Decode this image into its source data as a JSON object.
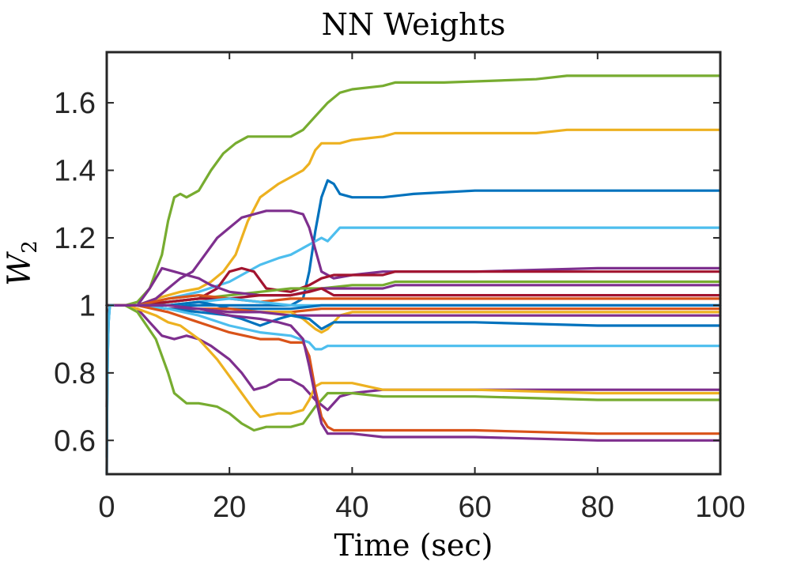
{
  "chart_data": {
    "type": "line",
    "title": "NN Weights",
    "xlabel": "Time (sec)",
    "ylabel": {
      "base": "W",
      "subscript": "2"
    },
    "xlim": [
      0,
      100
    ],
    "ylim": [
      0.5,
      1.75
    ],
    "xticks": [
      0,
      20,
      40,
      60,
      80,
      100
    ],
    "xtick_labels": [
      "0",
      "20",
      "40",
      "60",
      "80",
      "100"
    ],
    "yticks": [
      0.6,
      0.8,
      1.0,
      1.2,
      1.4,
      1.6
    ],
    "ytick_labels": [
      "0.6",
      "0.8",
      "1",
      "1.2",
      "1.4",
      "1.6"
    ],
    "grid": false,
    "legend": "none",
    "series": [
      {
        "color": "#77AC30",
        "x": [
          0,
          0.3,
          1,
          3,
          5,
          7,
          9,
          10,
          11,
          12,
          13,
          15,
          17,
          19,
          21,
          23,
          25,
          30,
          32,
          34,
          36,
          38,
          40,
          45,
          47,
          55,
          70,
          75,
          80,
          100
        ],
        "y": [
          1,
          1,
          1,
          1,
          1.01,
          1.05,
          1.15,
          1.25,
          1.32,
          1.33,
          1.32,
          1.34,
          1.4,
          1.45,
          1.48,
          1.5,
          1.5,
          1.5,
          1.52,
          1.56,
          1.6,
          1.63,
          1.64,
          1.65,
          1.66,
          1.66,
          1.67,
          1.68,
          1.68,
          1.68
        ]
      },
      {
        "color": "#EDB120",
        "x": [
          0,
          0.3,
          1,
          3,
          5,
          8,
          12,
          15,
          17,
          19,
          21,
          23,
          25,
          28,
          30,
          32,
          33,
          34,
          35,
          36,
          38,
          40,
          45,
          47,
          55,
          70,
          75,
          80,
          100
        ],
        "y": [
          1,
          1,
          1,
          1,
          1,
          1.02,
          1.04,
          1.05,
          1.07,
          1.1,
          1.15,
          1.25,
          1.32,
          1.36,
          1.38,
          1.4,
          1.42,
          1.46,
          1.48,
          1.48,
          1.48,
          1.49,
          1.5,
          1.51,
          1.51,
          1.51,
          1.52,
          1.52,
          1.52
        ]
      },
      {
        "color": "#0072BD",
        "x": [
          0,
          0.3,
          1,
          3,
          5,
          10,
          15,
          20,
          25,
          30,
          32,
          33,
          34,
          35,
          36,
          37,
          38,
          40,
          45,
          50,
          60,
          70,
          80,
          100
        ],
        "y": [
          1,
          1,
          1,
          1,
          1,
          1,
          1,
          1,
          1,
          1.0,
          1.02,
          1.1,
          1.22,
          1.32,
          1.37,
          1.36,
          1.33,
          1.32,
          1.32,
          1.33,
          1.34,
          1.34,
          1.34,
          1.34
        ]
      },
      {
        "color": "#4DBEEE",
        "x": [
          0,
          0.3,
          1,
          3,
          5,
          10,
          15,
          20,
          25,
          28,
          30,
          32,
          33,
          35,
          36,
          37,
          38,
          40,
          45,
          60,
          80,
          100
        ],
        "y": [
          1,
          1,
          1,
          1,
          1,
          1.02,
          1.04,
          1.07,
          1.12,
          1.14,
          1.15,
          1.17,
          1.18,
          1.2,
          1.19,
          1.21,
          1.23,
          1.23,
          1.23,
          1.23,
          1.23,
          1.23
        ]
      },
      {
        "color": "#7E2F8E",
        "x": [
          0,
          0.3,
          1,
          3,
          5,
          8,
          10,
          12,
          14,
          16,
          18,
          20,
          22,
          24,
          26,
          28,
          30,
          32,
          33,
          35,
          37,
          40,
          45,
          60,
          80,
          100
        ],
        "y": [
          1,
          1,
          1,
          1,
          1,
          1.02,
          1.05,
          1.08,
          1.1,
          1.15,
          1.2,
          1.23,
          1.26,
          1.27,
          1.28,
          1.28,
          1.28,
          1.27,
          1.23,
          1.1,
          1.08,
          1.09,
          1.1,
          1.1,
          1.11,
          1.11
        ]
      },
      {
        "color": "#A2142F",
        "x": [
          0,
          0.3,
          1,
          3,
          5,
          10,
          15,
          18,
          20,
          22,
          24,
          26,
          30,
          33,
          35,
          37,
          40,
          45,
          47,
          60,
          80,
          100
        ],
        "y": [
          1,
          1,
          1,
          1,
          1,
          1.01,
          1.02,
          1.05,
          1.1,
          1.11,
          1.1,
          1.05,
          1.04,
          1.06,
          1.08,
          1.09,
          1.09,
          1.09,
          1.1,
          1.1,
          1.1,
          1.1
        ]
      },
      {
        "color": "#77AC30",
        "x": [
          0,
          0.3,
          1,
          3,
          5,
          10,
          15,
          20,
          25,
          30,
          35,
          40,
          45,
          47,
          60,
          80,
          100
        ],
        "y": [
          1,
          1,
          1,
          1,
          1,
          1.01,
          1.02,
          1.03,
          1.04,
          1.05,
          1.05,
          1.06,
          1.06,
          1.07,
          1.07,
          1.07,
          1.07
        ]
      },
      {
        "color": "#7E2F8E",
        "x": [
          0,
          0.3,
          1,
          3,
          5,
          7,
          9,
          11,
          13,
          15,
          17,
          20,
          25,
          30,
          35,
          40,
          45,
          47,
          60,
          80,
          100
        ],
        "y": [
          1,
          1,
          1,
          1,
          1,
          1.05,
          1.11,
          1.1,
          1.09,
          1.08,
          1.06,
          1.04,
          1.03,
          1.03,
          1.05,
          1.05,
          1.05,
          1.06,
          1.06,
          1.06,
          1.06
        ]
      },
      {
        "color": "#A2142F",
        "x": [
          0,
          0.3,
          1,
          3,
          5,
          10,
          15,
          20,
          25,
          30,
          33,
          35,
          37,
          40,
          45,
          60,
          80,
          100
        ],
        "y": [
          1,
          1,
          1,
          1,
          1,
          1.01,
          1.02,
          1.02,
          1.03,
          1.03,
          1.04,
          1.05,
          1.03,
          1.03,
          1.03,
          1.03,
          1.03,
          1.03
        ]
      },
      {
        "color": "#D95319",
        "x": [
          0,
          0.3,
          1,
          3,
          5,
          10,
          15,
          20,
          25,
          30,
          35,
          40,
          60,
          80,
          100
        ],
        "y": [
          1,
          1,
          1,
          1,
          1,
          1.02,
          1.03,
          1.02,
          1.01,
          1.02,
          1.02,
          1.02,
          1.02,
          1.02,
          1.02
        ]
      },
      {
        "color": "#4DBEEE",
        "x": [
          0,
          0.3,
          1,
          3,
          5,
          10,
          15,
          20,
          25,
          30,
          35,
          40,
          60,
          80,
          100
        ],
        "y": [
          1,
          1,
          1,
          1,
          1,
          1.0,
          1.01,
          1.02,
          1.01,
          1.0,
          1.0,
          1.0,
          1.0,
          1.0,
          1.0
        ]
      },
      {
        "color": "#0072BD",
        "x": [
          0,
          0.3,
          1,
          3,
          5,
          10,
          15,
          18,
          20,
          25,
          30,
          35,
          40,
          60,
          80,
          100
        ],
        "y": [
          1,
          1,
          1,
          1,
          1,
          1,
          1.01,
          1.0,
          0.99,
          0.99,
          0.99,
          1.0,
          1.0,
          1.0,
          1.0,
          1.0
        ]
      },
      {
        "color": "#D95319",
        "x": [
          0,
          0.3,
          1,
          3,
          5,
          10,
          15,
          20,
          25,
          30,
          35,
          40,
          60,
          80,
          100
        ],
        "y": [
          1,
          1,
          1,
          1,
          1,
          0.99,
          0.99,
          0.99,
          0.98,
          0.98,
          0.99,
          0.99,
          0.99,
          0.99,
          0.99
        ]
      },
      {
        "color": "#EDB120",
        "x": [
          0,
          0.3,
          1,
          3,
          5,
          10,
          15,
          20,
          25,
          30,
          32,
          34,
          35,
          36,
          37,
          38,
          40,
          60,
          80,
          100
        ],
        "y": [
          1,
          1,
          1,
          1,
          1,
          0.99,
          0.99,
          0.98,
          0.98,
          0.98,
          0.96,
          0.93,
          0.92,
          0.93,
          0.95,
          0.97,
          0.98,
          0.98,
          0.98,
          0.98
        ]
      },
      {
        "color": "#7E2F8E",
        "x": [
          0,
          0.3,
          1,
          3,
          5,
          10,
          15,
          20,
          25,
          30,
          35,
          40,
          60,
          80,
          100
        ],
        "y": [
          1,
          1,
          1,
          1,
          1,
          0.99,
          0.99,
          0.98,
          0.98,
          0.97,
          0.97,
          0.97,
          0.97,
          0.97,
          0.97
        ]
      },
      {
        "color": "#0072BD",
        "x": [
          0,
          0.3,
          1,
          3,
          5,
          10,
          15,
          20,
          22,
          25,
          28,
          30,
          33,
          35,
          37,
          40,
          60,
          80,
          100
        ],
        "y": [
          1,
          1,
          1,
          1,
          1,
          0.99,
          0.98,
          0.97,
          0.96,
          0.94,
          0.96,
          0.97,
          0.96,
          0.93,
          0.95,
          0.95,
          0.95,
          0.94,
          0.94
        ]
      },
      {
        "color": "#4DBEEE",
        "x": [
          0,
          0.3,
          1,
          3,
          5,
          10,
          15,
          20,
          25,
          30,
          33,
          34,
          35,
          36,
          38,
          40,
          60,
          80,
          100
        ],
        "y": [
          1,
          1,
          1,
          1,
          1,
          0.99,
          0.97,
          0.94,
          0.92,
          0.91,
          0.89,
          0.87,
          0.87,
          0.88,
          0.88,
          0.88,
          0.88,
          0.88,
          0.88
        ]
      },
      {
        "color": "#7E2F8E",
        "x": [
          0,
          0.3,
          1,
          3,
          5,
          7,
          9,
          11,
          13,
          15,
          17,
          20,
          22,
          24,
          26,
          28,
          30,
          32,
          34,
          36,
          38,
          40,
          45,
          60,
          80,
          100
        ],
        "y": [
          1,
          1,
          1,
          1,
          0.99,
          0.95,
          0.91,
          0.9,
          0.91,
          0.9,
          0.88,
          0.84,
          0.8,
          0.75,
          0.76,
          0.78,
          0.78,
          0.76,
          0.72,
          0.69,
          0.73,
          0.74,
          0.75,
          0.75,
          0.75,
          0.75
        ]
      },
      {
        "color": "#EDB120",
        "x": [
          0,
          0.3,
          1,
          3,
          5,
          8,
          10,
          12,
          15,
          18,
          20,
          22,
          24,
          25,
          28,
          30,
          32,
          33,
          34,
          35,
          37,
          40,
          45,
          60,
          80,
          100
        ],
        "y": [
          1,
          1,
          1,
          1,
          0.99,
          0.97,
          0.95,
          0.94,
          0.9,
          0.84,
          0.79,
          0.74,
          0.69,
          0.67,
          0.68,
          0.68,
          0.69,
          0.72,
          0.76,
          0.77,
          0.77,
          0.77,
          0.75,
          0.75,
          0.74,
          0.74
        ]
      },
      {
        "color": "#77AC30",
        "x": [
          0,
          0.3,
          1,
          3,
          5,
          8,
          10,
          11,
          13,
          15,
          18,
          20,
          22,
          24,
          26,
          28,
          30,
          32,
          34,
          36,
          38,
          40,
          45,
          60,
          80,
          100
        ],
        "y": [
          1,
          1,
          1,
          1,
          0.98,
          0.9,
          0.8,
          0.74,
          0.71,
          0.71,
          0.7,
          0.68,
          0.65,
          0.63,
          0.64,
          0.64,
          0.64,
          0.65,
          0.7,
          0.74,
          0.74,
          0.74,
          0.73,
          0.73,
          0.72,
          0.72
        ]
      },
      {
        "color": "#D95319",
        "x": [
          0,
          0.3,
          1,
          3,
          5,
          10,
          15,
          20,
          25,
          28,
          30,
          32,
          33,
          34,
          35,
          36,
          37,
          40,
          45,
          60,
          80,
          100
        ],
        "y": [
          1,
          1,
          1,
          1,
          1,
          0.98,
          0.95,
          0.92,
          0.9,
          0.9,
          0.89,
          0.89,
          0.85,
          0.75,
          0.67,
          0.64,
          0.63,
          0.63,
          0.63,
          0.63,
          0.62,
          0.62
        ]
      },
      {
        "color": "#7E2F8E",
        "x": [
          0,
          0.3,
          1,
          3,
          5,
          10,
          15,
          20,
          25,
          28,
          30,
          32,
          33,
          34,
          35,
          36,
          37,
          40,
          45,
          60,
          80,
          100
        ],
        "y": [
          1,
          1,
          1,
          1,
          1,
          1.0,
          0.99,
          0.97,
          0.96,
          0.95,
          0.94,
          0.9,
          0.82,
          0.73,
          0.65,
          0.62,
          0.62,
          0.62,
          0.61,
          0.61,
          0.6,
          0.6
        ]
      },
      {
        "color": "#0072BD",
        "x": [
          0,
          0.05,
          0.15,
          0.3,
          0.5,
          1
        ],
        "y": [
          0.5,
          0.68,
          0.85,
          0.95,
          1.0,
          1.0
        ]
      },
      {
        "color": "#A2142F",
        "x": [
          0,
          0.05,
          0.15,
          0.3,
          0.5,
          1
        ],
        "y": [
          0.7,
          0.8,
          0.9,
          0.97,
          1.0,
          1.0
        ]
      },
      {
        "color": "#4DBEEE",
        "x": [
          0,
          0.05,
          0.15,
          0.3,
          0.5,
          1
        ],
        "y": [
          0.55,
          0.7,
          0.85,
          0.95,
          1.0,
          1.0
        ]
      }
    ]
  }
}
